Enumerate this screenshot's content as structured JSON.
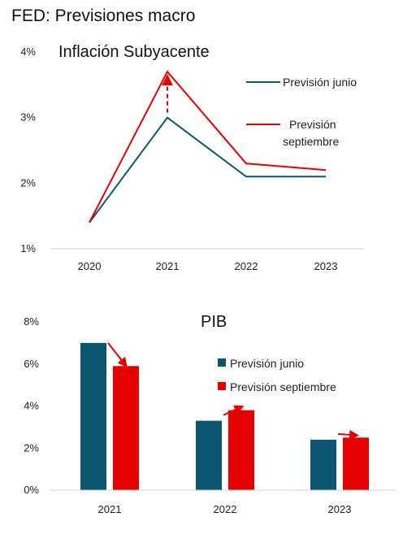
{
  "page_title": "FED: Previsiones macro",
  "colors": {
    "june": "#0a5570",
    "september": "#e60000"
  },
  "chart_data": [
    {
      "type": "line",
      "title": "Inflación Subyacente",
      "categories": [
        "2020",
        "2021",
        "2022",
        "2023"
      ],
      "y_tick_labels": [
        "1%",
        "2%",
        "3%",
        "4%"
      ],
      "ylim": [
        1,
        4
      ],
      "series": [
        {
          "name": "Previsión junio",
          "values": [
            1.4,
            3.0,
            2.1,
            2.1
          ]
        },
        {
          "name": "Previsión septiembre",
          "values": [
            1.4,
            3.7,
            2.3,
            2.2
          ]
        }
      ],
      "legend_labels": [
        "Previsión junio",
        "Previsión",
        "septiembre"
      ],
      "legend_position": "top-right",
      "annotation": "dashed upward arrow at 2021 from junio to septiembre"
    },
    {
      "type": "bar",
      "title": "PIB",
      "categories": [
        "2021",
        "2022",
        "2023"
      ],
      "y_tick_labels": [
        "0%",
        "2%",
        "4%",
        "6%",
        "8%"
      ],
      "ylim": [
        0,
        8
      ],
      "series": [
        {
          "name": "Previsión junio",
          "values": [
            7.0,
            3.3,
            2.4
          ]
        },
        {
          "name": "Previsión septiembre",
          "values": [
            5.9,
            3.8,
            2.5
          ]
        }
      ],
      "legend_position": "right",
      "annotation": "red arrows from junio bar to septiembre bar"
    }
  ]
}
